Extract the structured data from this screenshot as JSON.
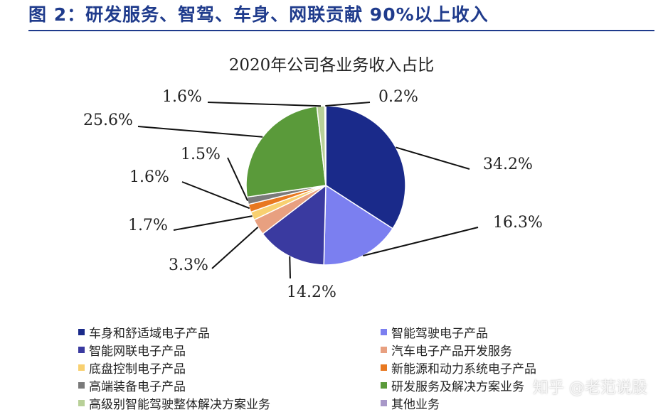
{
  "figure_title": "图 2：研发服务、智驾、车身、网联贡献 90%以上收入",
  "watermark": "知乎 @老范说股",
  "chart_data": {
    "type": "pie",
    "title": "2020年公司各业务收入占比",
    "legend_position": "bottom",
    "slices": [
      {
        "label": "车身和舒适域电子产品",
        "value": 34.2,
        "value_label": "34.2%",
        "color": "#1a2a8a"
      },
      {
        "label": "智能驾驶电子产品",
        "value": 16.3,
        "value_label": "16.3%",
        "color": "#7b7ff0"
      },
      {
        "label": "智能网联电子产品",
        "value": 14.2,
        "value_label": "14.2%",
        "color": "#3a3aa0"
      },
      {
        "label": "汽车电子产品开发服务",
        "value": 3.3,
        "value_label": "3.3%",
        "color": "#e8a080"
      },
      {
        "label": "底盘控制电子产品",
        "value": 1.7,
        "value_label": "1.7%",
        "color": "#f8d070"
      },
      {
        "label": "新能源和动力系统电子产品",
        "value": 1.6,
        "value_label": "1.6%",
        "color": "#e87820"
      },
      {
        "label": "高端装备电子产品",
        "value": 1.5,
        "value_label": "1.5%",
        "color": "#7a7a7a"
      },
      {
        "label": "研发服务及解决方案业务",
        "value": 25.6,
        "value_label": "25.6%",
        "color": "#5a9a3a"
      },
      {
        "label": "高级别智能驾驶整体解决方案业务",
        "value": 1.6,
        "value_label": "1.6%",
        "color": "#b8d098"
      },
      {
        "label": "其他业务",
        "value": 0.2,
        "value_label": "0.2%",
        "color": "#a898c8"
      }
    ]
  }
}
